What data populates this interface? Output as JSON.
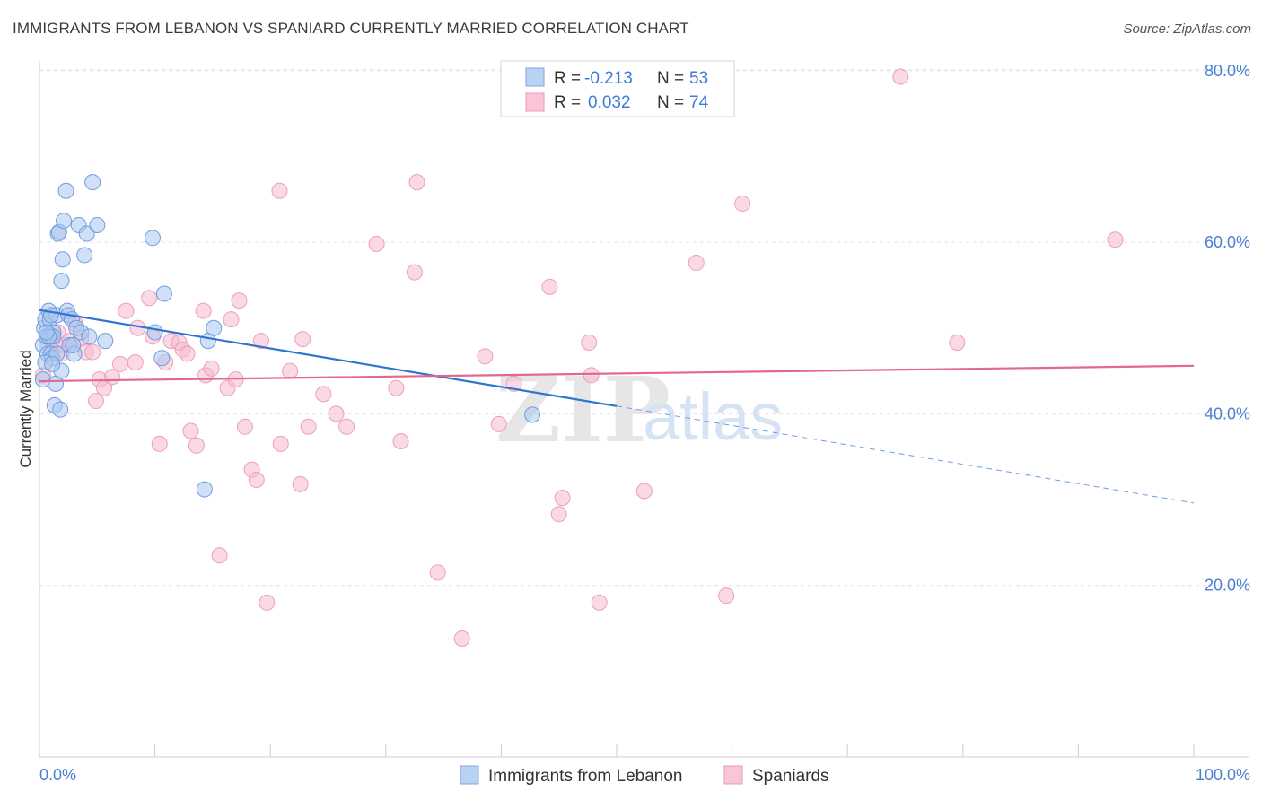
{
  "title": "IMMIGRANTS FROM LEBANON VS SPANIARD CURRENTLY MARRIED CORRELATION CHART",
  "source": "Source: ZipAtlas.com",
  "watermark": {
    "zip": "ZIP",
    "atlas": "atlas"
  },
  "colors": {
    "blue": "#4a86d8",
    "blue_fill": "#a9c7ef",
    "pink": "#e46f9a",
    "pink_fill": "#f4b9cd",
    "axis_text": "#4a7fd4"
  },
  "legend_top": {
    "rows": [
      {
        "r_label": "R =",
        "r_value": "-0.213",
        "n_label": "N =",
        "n_value": "53"
      },
      {
        "r_label": "R =",
        "r_value": "0.032",
        "n_label": "N =",
        "n_value": "74"
      }
    ]
  },
  "legend_bottom": {
    "items": [
      "Immigrants from Lebanon",
      "Spaniards"
    ]
  },
  "chart_data": {
    "type": "scatter",
    "ylabel": "Currently Married",
    "xlabel": "",
    "x_tick_labels": [
      "0.0%",
      "100.0%"
    ],
    "y_tick_labels": [
      "20.0%",
      "40.0%",
      "60.0%",
      "80.0%"
    ],
    "y_ticks": [
      20,
      40,
      60,
      80
    ],
    "xlim": [
      0,
      100
    ],
    "ylim": [
      0,
      83
    ],
    "grid": true,
    "series": [
      {
        "name": "Immigrants from Lebanon",
        "color": "#4a86d8",
        "points": [
          [
            0.3,
            44
          ],
          [
            0.3,
            48
          ],
          [
            0.4,
            50
          ],
          [
            0.5,
            51
          ],
          [
            0.6,
            49
          ],
          [
            0.7,
            47
          ],
          [
            0.8,
            52
          ],
          [
            0.9,
            51
          ],
          [
            1.0,
            49
          ],
          [
            1.0,
            47
          ],
          [
            1.1,
            46.5
          ],
          [
            1.2,
            49.5
          ],
          [
            1.3,
            41
          ],
          [
            1.4,
            43.5
          ],
          [
            1.5,
            51.5
          ],
          [
            1.6,
            61
          ],
          [
            1.7,
            61.2
          ],
          [
            1.8,
            40.5
          ],
          [
            1.9,
            45
          ],
          [
            1.9,
            55.5
          ],
          [
            2.0,
            58
          ],
          [
            2.1,
            62.5
          ],
          [
            2.3,
            66
          ],
          [
            2.4,
            52
          ],
          [
            2.5,
            51.5
          ],
          [
            2.6,
            48
          ],
          [
            2.8,
            51
          ],
          [
            3.0,
            47
          ],
          [
            3.2,
            50
          ],
          [
            3.4,
            62
          ],
          [
            3.6,
            49.5
          ],
          [
            3.9,
            58.5
          ],
          [
            4.1,
            61
          ],
          [
            4.3,
            49
          ],
          [
            4.6,
            67
          ],
          [
            5.0,
            62
          ],
          [
            5.7,
            48.5
          ],
          [
            1.2,
            49
          ],
          [
            0.8,
            49
          ],
          [
            1.0,
            51.5
          ],
          [
            1.5,
            47
          ],
          [
            9.8,
            60.5
          ],
          [
            10.0,
            49.5
          ],
          [
            10.6,
            46.5
          ],
          [
            10.8,
            54
          ],
          [
            14.3,
            31.2
          ],
          [
            14.6,
            48.5
          ],
          [
            15.1,
            50
          ],
          [
            42.7,
            39.9
          ],
          [
            0.5,
            46
          ],
          [
            1.1,
            45.8
          ],
          [
            2.9,
            48
          ],
          [
            0.6,
            49.5
          ]
        ],
        "trend": {
          "x0": 0,
          "y0": 52.1,
          "x1": 50,
          "y1": 40.9,
          "dash_to_x": 100,
          "dash_to_y": 29.6
        }
      },
      {
        "name": "Spaniards",
        "color": "#e46f9a",
        "points": [
          [
            0.3,
            44.5
          ],
          [
            0.8,
            48
          ],
          [
            1.1,
            48.5
          ],
          [
            1.6,
            49.5
          ],
          [
            1.9,
            47
          ],
          [
            2.2,
            48
          ],
          [
            2.6,
            48.5
          ],
          [
            3.1,
            50.5
          ],
          [
            3.6,
            48.8
          ],
          [
            4.0,
            47.2
          ],
          [
            4.6,
            47.2
          ],
          [
            4.9,
            41.5
          ],
          [
            5.2,
            44
          ],
          [
            5.6,
            43
          ],
          [
            6.3,
            44.3
          ],
          [
            7.0,
            45.8
          ],
          [
            7.5,
            52
          ],
          [
            8.3,
            46
          ],
          [
            8.5,
            50
          ],
          [
            9.5,
            53.5
          ],
          [
            9.8,
            49
          ],
          [
            10.4,
            36.5
          ],
          [
            10.9,
            46
          ],
          [
            11.4,
            48.5
          ],
          [
            12.1,
            48.3
          ],
          [
            12.4,
            47.5
          ],
          [
            12.8,
            47
          ],
          [
            13.1,
            38
          ],
          [
            13.6,
            36.3
          ],
          [
            14.2,
            52
          ],
          [
            14.4,
            44.5
          ],
          [
            14.9,
            45.3
          ],
          [
            15.6,
            23.5
          ],
          [
            16.3,
            43
          ],
          [
            16.6,
            51
          ],
          [
            17.0,
            44
          ],
          [
            17.3,
            53.2
          ],
          [
            17.8,
            38.5
          ],
          [
            18.4,
            33.5
          ],
          [
            18.8,
            32.3
          ],
          [
            19.2,
            48.5
          ],
          [
            19.7,
            18
          ],
          [
            20.8,
            66
          ],
          [
            20.9,
            36.5
          ],
          [
            21.7,
            45
          ],
          [
            22.6,
            31.8
          ],
          [
            22.8,
            48.7
          ],
          [
            23.3,
            38.5
          ],
          [
            24.6,
            42.3
          ],
          [
            25.7,
            40
          ],
          [
            26.6,
            38.5
          ],
          [
            29.2,
            59.8
          ],
          [
            30.9,
            43
          ],
          [
            31.3,
            36.8
          ],
          [
            32.5,
            56.5
          ],
          [
            32.7,
            67
          ],
          [
            34.5,
            21.5
          ],
          [
            36.6,
            13.8
          ],
          [
            38.6,
            46.7
          ],
          [
            39.8,
            38.8
          ],
          [
            41.1,
            43.5
          ],
          [
            44.2,
            54.8
          ],
          [
            45.0,
            28.3
          ],
          [
            45.3,
            30.2
          ],
          [
            47.6,
            48.3
          ],
          [
            47.8,
            44.5
          ],
          [
            48.5,
            18
          ],
          [
            52.4,
            31
          ],
          [
            56.9,
            57.6
          ],
          [
            59.5,
            18.8
          ],
          [
            60.9,
            64.5
          ],
          [
            74.6,
            79.3
          ],
          [
            79.5,
            48.3
          ],
          [
            93.2,
            60.3
          ]
        ],
        "trend": {
          "x0": 0,
          "y0": 43.8,
          "x1": 100,
          "y1": 45.6
        }
      }
    ]
  }
}
